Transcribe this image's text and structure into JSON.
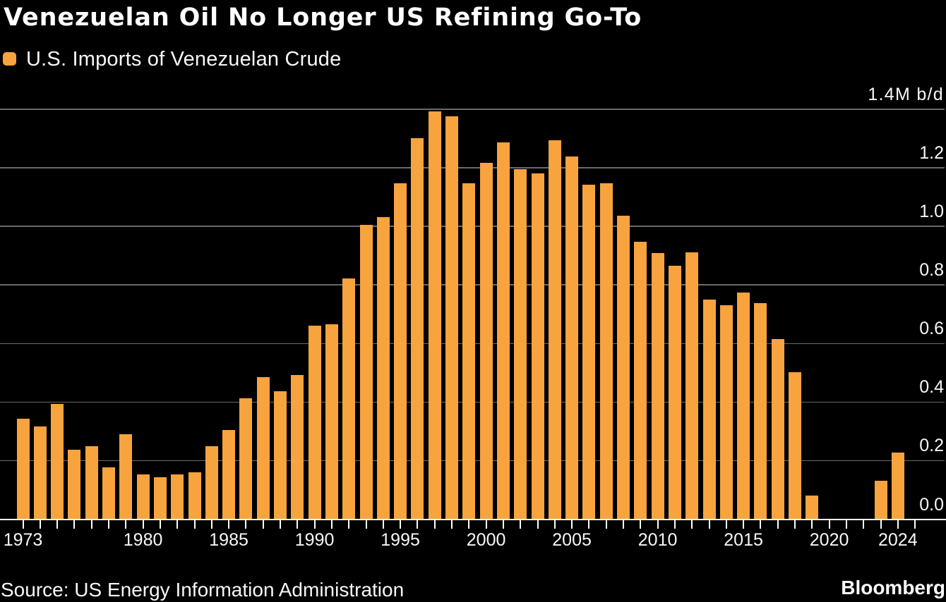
{
  "title": "Venezuelan Oil No Longer US Refining Go-To",
  "legend": {
    "label": "U.S. Imports of Venezuelan Crude",
    "swatch_color": "#F7A33E"
  },
  "source_line": "Source: US Energy Information Administration",
  "brand": "Bloomberg",
  "colors": {
    "background": "#000000",
    "bar": "#F7A33E",
    "gridline": "#6A6A6A",
    "axis_line": "#FFFFFF",
    "tick": "#FFFFFF",
    "text": "#F7F7F7"
  },
  "chart_data": {
    "type": "bar",
    "title": "Venezuelan Oil No Longer US Refining Go-To",
    "series_name": "U.S. Imports of Venezuelan Crude",
    "unit": "M b/d",
    "x": [
      1973,
      1974,
      1975,
      1976,
      1977,
      1978,
      1979,
      1980,
      1981,
      1982,
      1983,
      1984,
      1985,
      1986,
      1987,
      1988,
      1989,
      1990,
      1991,
      1992,
      1993,
      1994,
      1995,
      1996,
      1997,
      1998,
      1999,
      2000,
      2001,
      2002,
      2003,
      2004,
      2005,
      2006,
      2007,
      2008,
      2009,
      2010,
      2011,
      2012,
      2013,
      2014,
      2015,
      2016,
      2017,
      2018,
      2019,
      2020,
      2021,
      2022,
      2023,
      2024
    ],
    "values": [
      0.342,
      0.317,
      0.394,
      0.238,
      0.248,
      0.178,
      0.29,
      0.154,
      0.144,
      0.152,
      0.161,
      0.249,
      0.304,
      0.413,
      0.486,
      0.436,
      0.492,
      0.662,
      0.665,
      0.821,
      1.006,
      1.032,
      1.148,
      1.302,
      1.392,
      1.377,
      1.148,
      1.217,
      1.288,
      1.195,
      1.18,
      1.295,
      1.239,
      1.142,
      1.148,
      1.037,
      0.948,
      0.909,
      0.866,
      0.911,
      0.751,
      0.731,
      0.775,
      0.739,
      0.615,
      0.503,
      0.08,
      null,
      null,
      null,
      0.131,
      0.228
    ],
    "xlabel": "",
    "ylabel": "M b/d",
    "ylim": [
      0,
      1.4
    ],
    "yticks": [
      0.0,
      0.2,
      0.4,
      0.6,
      0.8,
      1.0,
      1.2,
      1.4
    ],
    "ytick_labels": [
      "0.0",
      "0.2",
      "0.4",
      "0.6",
      "0.8",
      "1.0",
      "1.2",
      "1.4M b/d"
    ],
    "xtick_labeled_years": [
      1973,
      1980,
      1985,
      1990,
      1995,
      2000,
      2005,
      2010,
      2015,
      2020,
      2024
    ],
    "minor_ticks_every_year_from": 1973,
    "minor_ticks_every_year_to": 2025,
    "grid": "horizontal",
    "legend_position": "top-left"
  }
}
